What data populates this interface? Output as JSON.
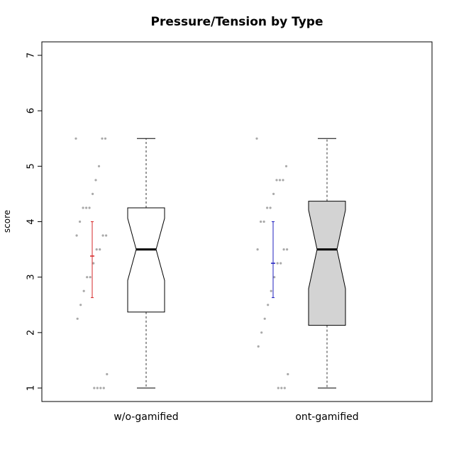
{
  "chart_data": {
    "type": "boxplot",
    "title": "Pressure/Tension by Type",
    "xlabel": "",
    "ylabel": "score",
    "ylim": [
      0.75,
      7.25
    ],
    "yticks": [
      "1",
      "2",
      "3",
      "4",
      "5",
      "6",
      "7"
    ],
    "grid": false,
    "legend": "none",
    "categories": [
      "w/o-gamified",
      "ont-gamified"
    ],
    "boxes": [
      {
        "name": "w/o-gamified",
        "whisker_low": 1.0,
        "q1": 2.37,
        "median": 3.5,
        "q3": 4.25,
        "whisker_high": 5.5,
        "notch_low": 2.94,
        "notch_high": 4.06,
        "fill": "#ffffff",
        "mean": 3.38,
        "ci_low": 2.63,
        "ci_high": 4.0,
        "ci_color": "#d62728",
        "points": [
          5.5,
          5.5,
          5.5,
          5.0,
          4.75,
          4.5,
          4.25,
          4.25,
          4.25,
          4.0,
          3.75,
          3.75,
          3.75,
          3.5,
          3.5,
          3.25,
          3.0,
          3.0,
          2.75,
          2.5,
          2.25,
          1.25,
          1.0,
          1.0,
          1.0,
          1.0
        ]
      },
      {
        "name": "ont-gamified",
        "whisker_low": 1.0,
        "q1": 2.13,
        "median": 3.5,
        "q3": 4.37,
        "whisker_high": 5.5,
        "notch_low": 2.79,
        "notch_high": 4.21,
        "fill": "#d3d3d3",
        "mean": 3.25,
        "ci_low": 2.63,
        "ci_high": 4.0,
        "ci_color": "#1f1fbf",
        "points": [
          5.5,
          5.0,
          4.75,
          4.75,
          4.75,
          4.5,
          4.25,
          4.25,
          4.0,
          4.0,
          3.5,
          3.5,
          3.5,
          3.25,
          3.25,
          3.0,
          2.75,
          2.5,
          2.25,
          2.0,
          1.75,
          1.25,
          1.0,
          1.0,
          1.0
        ]
      }
    ],
    "point_color": "#a9a9a9"
  }
}
